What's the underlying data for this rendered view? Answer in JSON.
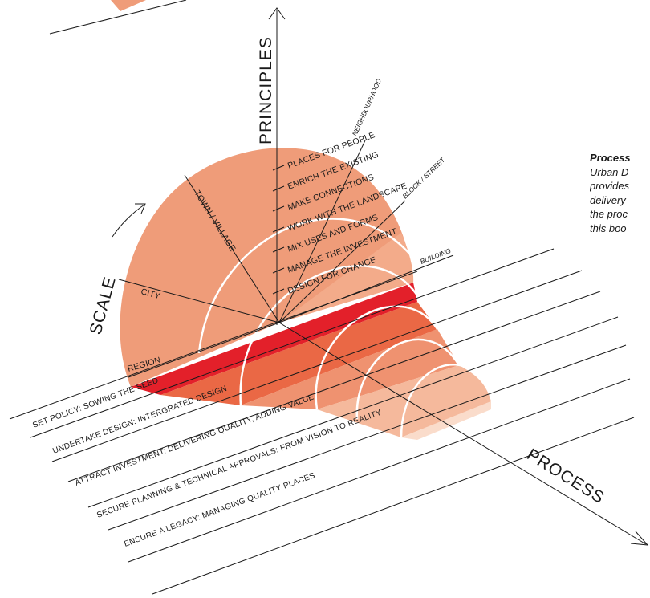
{
  "axes": {
    "principles": "PRINCIPLES",
    "scale": "SCALE",
    "process": "PROCESS"
  },
  "scale_levels": {
    "region": "REGION",
    "city": "CITY",
    "town_village": "TOWN / VILLAGE",
    "neighbourhood": "NEIGHBOURHOOD",
    "block_street": "BLOCK / STREET",
    "building": "BUILDING"
  },
  "principles": [
    "PLACES FOR PEOPLE",
    "ENRICH THE EXISTING",
    "MAKE CONNECTIONS",
    "WORK WITH THE LANDSCAPE",
    "MIX USES AND FORMS",
    "MANAGE THE INVESTMENT",
    "DESIGN FOR CHANGE"
  ],
  "process_steps": [
    "SET POLICY: SOWING THE SEED",
    "UNDERTAKE DESIGN: INTERGRATED DESIGN",
    "ATTRACT INVESTMENT: DELIVERING QUALITY, ADDING VALUE",
    "SECURE PLANNING & TECHNICAL APPROVALS: FROM VISION TO REALITY",
    "ENSURE A LEGACY: MANAGING QUALITY PLACES"
  ],
  "side_note": {
    "title": "Process",
    "lines": [
      "Urban D",
      "provides",
      "delivery",
      "the proc",
      "this boo"
    ]
  },
  "colors": {
    "dome": "#ef9c79",
    "fan": "#f3ab8a",
    "band_red": "#e3202a",
    "band_2": "#ea6845",
    "band_3": "#ef9270",
    "band_4": "#f5b99c",
    "band_5": "#fadccb",
    "arc_white": "#ffffff",
    "line": "#1a1a1a"
  }
}
